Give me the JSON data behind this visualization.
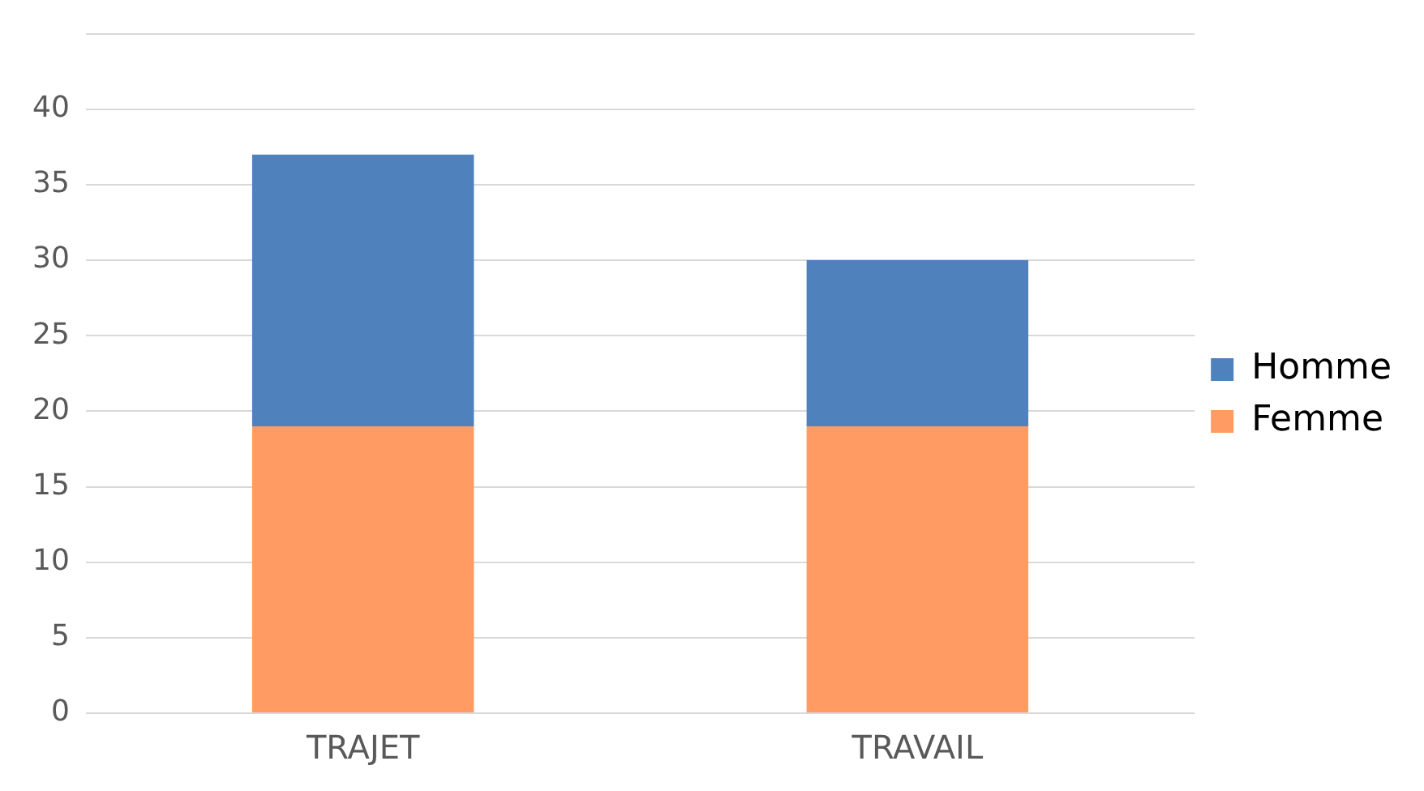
{
  "chart_data": {
    "type": "bar",
    "stacked": true,
    "categories": [
      "TRAJET",
      "TRAVAIL"
    ],
    "series": [
      {
        "name": "Femme",
        "color": "#ff9b63",
        "values": [
          19,
          19
        ]
      },
      {
        "name": "Homme",
        "color": "#4f81bd",
        "values": [
          18,
          11
        ]
      }
    ],
    "ylim": [
      0,
      45
    ],
    "yticks": [
      0,
      5,
      10,
      15,
      20,
      25,
      30,
      35,
      40,
      {
        "value": 45,
        "label": null
      }
    ],
    "grid": "y",
    "legend": "right"
  }
}
